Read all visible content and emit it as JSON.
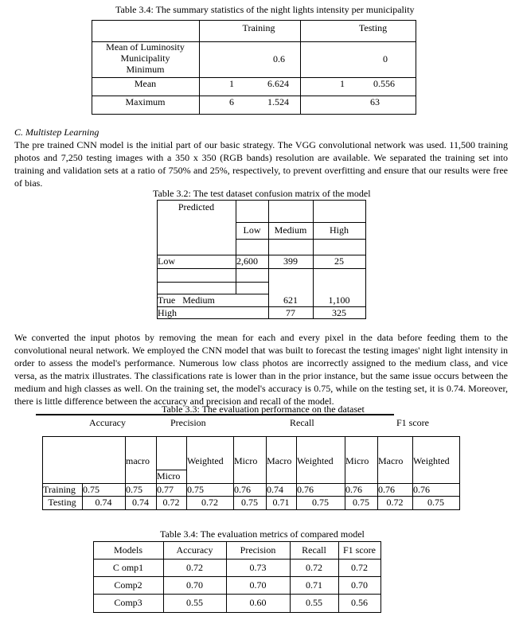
{
  "table1": {
    "caption": "Table 3.4: The summary statistics of the night lights intensity per municipality",
    "headers": [
      "Training",
      "Testing"
    ],
    "row_label_lines": [
      "Mean of Luminosity",
      "Municipality",
      "Minimum"
    ],
    "min_training": "0.6",
    "min_testing": "0",
    "mean": {
      "label": "Mean",
      "t1": "1",
      "t2": "6.624",
      "s1": "1",
      "s2": "0.556"
    },
    "max": {
      "label": "Maximum",
      "t1": "6",
      "t2": "1.524",
      "s": "63"
    }
  },
  "section": {
    "heading": "C.   Multistep Learning",
    "para1": "The pre trained CNN model is the initial part of our basic strategy. The VGG convolutional network was used. 11,500 training photos and 7,250 testing images with a 350 x 350 (RGB bands) resolution are available. We separated the training set into training and validation sets at a ratio of 750% and 25%, respectively, to prevent overfitting and ensure that our results were free of bias.",
    "para2": "We converted the input photos by removing the mean for each and every pixel in the data before feeding them to the convolutional neural network. We employed the CNN model that was built to forecast the testing images' night light intensity in order to assess the model's performance. Numerous low class photos are incorrectly assigned to the medium class, and vice versa, as the matrix illustrates. The classifications rate is lower than in the prior instance, but the same issue occurs between the medium and high classes as well. On the training set, the model's accuracy is 0.75, while on the testing set, it is 0.74. Moreover, there is little difference between the accuracy and precision and recall of the model."
  },
  "table2": {
    "caption": "Table 3.2: The test dataset confusion matrix of the model",
    "predicted": "Predicted",
    "cols": [
      "Low",
      "Medium",
      "High"
    ],
    "low": {
      "label": "Low",
      "v": [
        "2,600",
        "399",
        "25"
      ]
    },
    "medium": {
      "label": "True   Medium",
      "v": [
        "621",
        "1,100"
      ]
    },
    "high": {
      "label": "High",
      "v": [
        "77",
        "325"
      ]
    }
  },
  "table3": {
    "caption": "Table 3.3: The evaluation performance on the dataset",
    "groups": [
      "Accuracy",
      "Precision",
      "Recall",
      "F1 score"
    ],
    "sub": [
      "macro",
      "Micro",
      "Weighted",
      "Micro",
      "Macro",
      "Weighted",
      "Micro",
      "Macro",
      "Weighted"
    ],
    "rows": [
      {
        "label": "Training",
        "v": [
          "0.75",
          "0.75",
          "0.77",
          "0.75",
          "0.76",
          "0.74",
          "0.76",
          "0.76",
          "0.76",
          "0.76"
        ]
      },
      {
        "label": "Testing",
        "v": [
          "0.74",
          "0.74",
          "0.72",
          "0.72",
          "0.75",
          "0.71",
          "0.75",
          "0.75",
          "0.72",
          "0.75"
        ]
      }
    ]
  },
  "table4": {
    "caption": "Table 3.4: The evaluation metrics of compared model",
    "headers": [
      "Models",
      "Accuracy",
      "Precision",
      "Recall",
      "F1 score"
    ],
    "rows": [
      [
        "C omp1",
        "0.72",
        "0.73",
        "0.72",
        "0.72"
      ],
      [
        "Comp2",
        "0.70",
        "0.70",
        "0.71",
        "0.70"
      ],
      [
        "Comp3",
        "0.55",
        "0.60",
        "0.55",
        "0.56"
      ]
    ]
  }
}
